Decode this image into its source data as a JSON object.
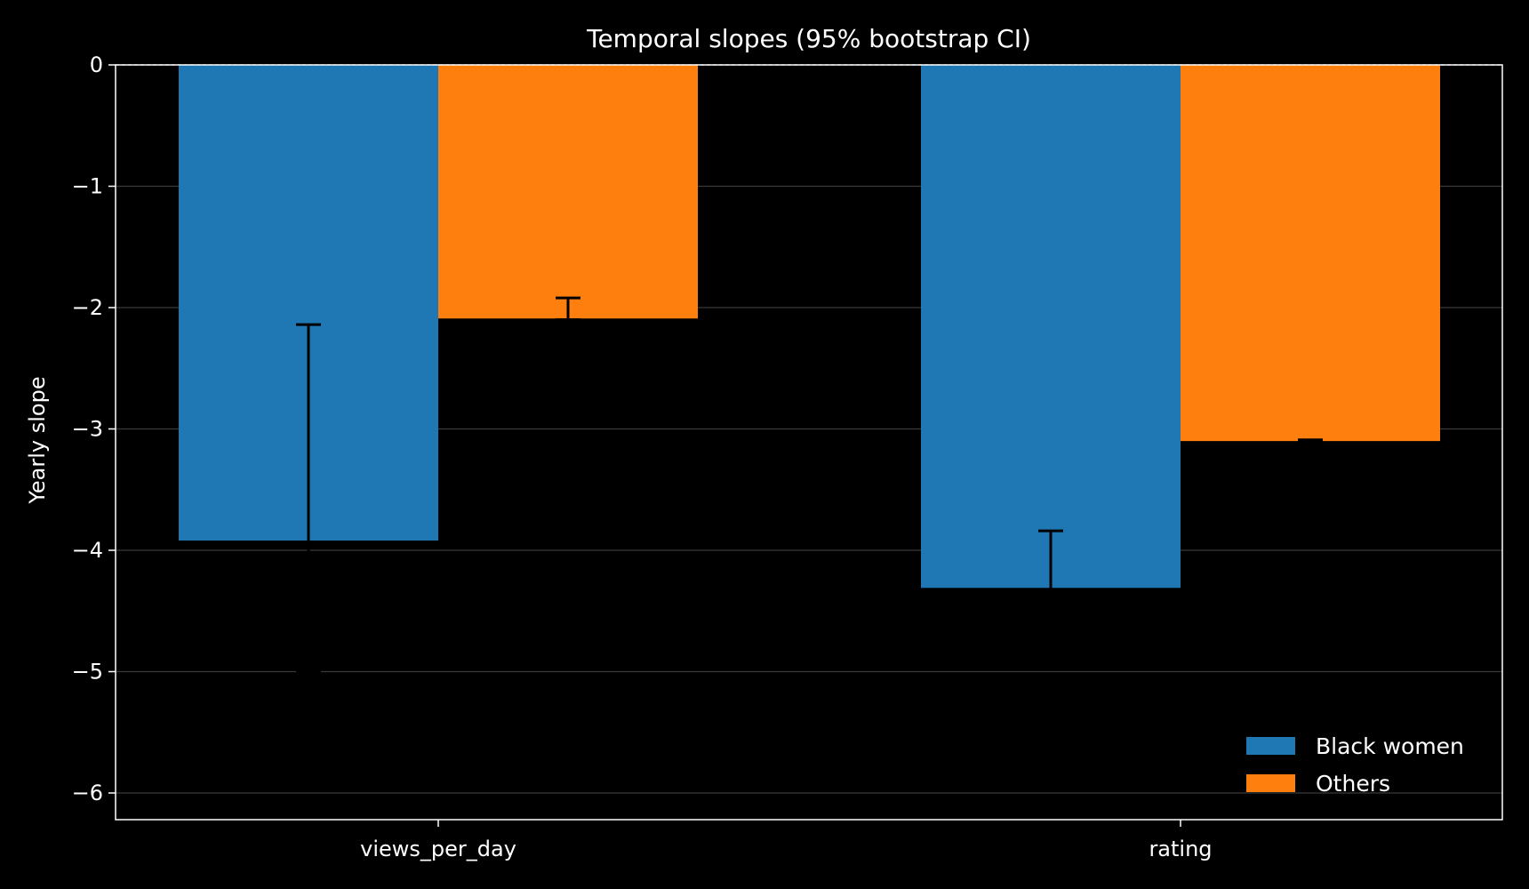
{
  "chart_data": {
    "type": "bar",
    "title": "Temporal slopes (95% bootstrap CI)",
    "xlabel": "",
    "ylabel": "Yearly slope",
    "categories": [
      "views_per_day",
      "rating"
    ],
    "series": [
      {
        "name": "Black women",
        "color": "#1f77b4",
        "values": [
          -3.92,
          -4.31
        ],
        "ci_low": [
          -5.0,
          -4.33
        ],
        "ci_high": [
          -2.14,
          -3.84
        ]
      },
      {
        "name": "Others",
        "color": "#ff7f0e",
        "values": [
          -2.09,
          -3.1
        ],
        "ci_low": [
          -2.1,
          -3.11
        ],
        "ci_high": [
          -1.92,
          -3.09
        ]
      }
    ],
    "ylim": [
      -6.22,
      0
    ],
    "yticks": [
      0,
      -1,
      -2,
      -3,
      -4,
      -5,
      -6
    ],
    "ytick_labels": [
      "0",
      "−1",
      "−2",
      "−3",
      "−4",
      "−5",
      "−6"
    ],
    "grid": true,
    "zero_line": "dashed",
    "legend_position": "bottom-right",
    "colors": {
      "background": "#000000",
      "foreground": "#ffffff",
      "grid": "#3a3a3a",
      "errorbar": "#000000"
    }
  }
}
